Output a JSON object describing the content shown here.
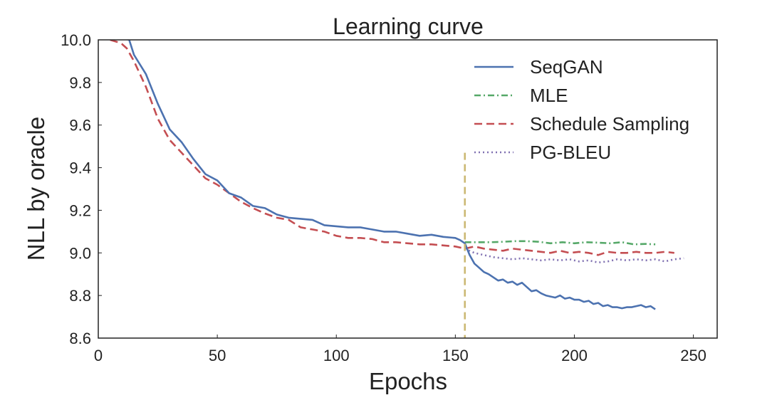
{
  "chart_data": {
    "type": "line",
    "title": "Learning curve",
    "xlabel": "Epochs",
    "ylabel": "NLL by oracle",
    "xlim": [
      0,
      260
    ],
    "ylim": [
      8.6,
      10.0
    ],
    "xticks": [
      0,
      50,
      100,
      150,
      200,
      250
    ],
    "yticks": [
      8.6,
      8.8,
      9.0,
      9.2,
      9.4,
      9.6,
      9.8,
      10.0
    ],
    "xtick_labels": [
      "0",
      "50",
      "100",
      "150",
      "200",
      "250"
    ],
    "ytick_labels": [
      "8.6",
      "8.8",
      "9.0",
      "9.2",
      "9.4",
      "9.6",
      "9.8",
      "10.0"
    ],
    "grid": false,
    "legend_position": "top-right",
    "vline": {
      "x": 154,
      "y_top": 9.47,
      "color": "#ccb974",
      "style": "dashed"
    },
    "series": [
      {
        "name": "SeqGAN",
        "color": "#4c72b0",
        "style": "solid",
        "x": [
          0,
          5,
          10,
          13,
          15,
          20,
          25,
          30,
          35,
          40,
          45,
          50,
          55,
          60,
          65,
          70,
          75,
          80,
          85,
          90,
          95,
          100,
          105,
          110,
          115,
          120,
          125,
          130,
          135,
          140,
          145,
          150,
          152,
          154,
          156,
          158,
          160,
          162,
          164,
          166,
          168,
          170,
          172,
          174,
          176,
          178,
          180,
          182,
          184,
          186,
          188,
          190,
          192,
          194,
          196,
          198,
          200,
          202,
          204,
          206,
          208,
          210,
          212,
          214,
          216,
          218,
          220,
          222,
          224,
          226,
          228,
          230,
          232,
          234
        ],
        "values": [
          10.05,
          10.03,
          10.01,
          10.0,
          9.93,
          9.84,
          9.7,
          9.58,
          9.52,
          9.44,
          9.37,
          9.34,
          9.28,
          9.26,
          9.22,
          9.21,
          9.18,
          9.165,
          9.16,
          9.155,
          9.13,
          9.125,
          9.12,
          9.12,
          9.11,
          9.1,
          9.1,
          9.09,
          9.08,
          9.085,
          9.075,
          9.07,
          9.06,
          9.045,
          8.99,
          8.95,
          8.93,
          8.91,
          8.9,
          8.885,
          8.87,
          8.875,
          8.86,
          8.865,
          8.85,
          8.86,
          8.84,
          8.82,
          8.825,
          8.81,
          8.8,
          8.795,
          8.79,
          8.8,
          8.785,
          8.79,
          8.78,
          8.78,
          8.77,
          8.775,
          8.76,
          8.765,
          8.75,
          8.755,
          8.745,
          8.745,
          8.74,
          8.745,
          8.745,
          8.75,
          8.755,
          8.745,
          8.75,
          8.735
        ]
      },
      {
        "name": "MLE",
        "color": "#55a868",
        "style": "dashdot",
        "x": [
          154,
          160,
          165,
          170,
          175,
          180,
          185,
          190,
          195,
          200,
          205,
          210,
          215,
          220,
          225,
          230,
          234
        ],
        "values": [
          9.05,
          9.05,
          9.05,
          9.052,
          9.055,
          9.055,
          9.052,
          9.045,
          9.05,
          9.045,
          9.05,
          9.048,
          9.045,
          9.05,
          9.04,
          9.042,
          9.04
        ]
      },
      {
        "name": "Schedule Sampling",
        "color": "#c44e52",
        "style": "dashed",
        "x": [
          5,
          8,
          10,
          12,
          15,
          20,
          25,
          30,
          35,
          40,
          45,
          50,
          55,
          60,
          65,
          70,
          75,
          80,
          85,
          90,
          95,
          100,
          105,
          110,
          115,
          120,
          125,
          130,
          135,
          140,
          145,
          150,
          154,
          158,
          162,
          166,
          170,
          174,
          178,
          182,
          186,
          190,
          194,
          198,
          202,
          206,
          210,
          214,
          218,
          222,
          226,
          230,
          234,
          238,
          242
        ],
        "values": [
          10.0,
          9.99,
          9.98,
          9.96,
          9.9,
          9.78,
          9.63,
          9.53,
          9.47,
          9.41,
          9.35,
          9.32,
          9.28,
          9.24,
          9.21,
          9.185,
          9.165,
          9.155,
          9.12,
          9.11,
          9.1,
          9.08,
          9.07,
          9.07,
          9.065,
          9.05,
          9.05,
          9.045,
          9.04,
          9.04,
          9.035,
          9.03,
          9.02,
          9.03,
          9.02,
          9.015,
          9.01,
          9.02,
          9.015,
          9.01,
          9.005,
          9.0,
          9.01,
          9.0,
          9.005,
          9.0,
          8.99,
          9.005,
          9.0,
          9.0,
          9.005,
          9.0,
          9.0,
          9.005,
          9.0
        ]
      },
      {
        "name": "PG-BLEU",
        "color": "#8172b2",
        "style": "dotted",
        "x": [
          154,
          158,
          162,
          166,
          170,
          174,
          178,
          182,
          186,
          190,
          194,
          198,
          202,
          206,
          210,
          214,
          218,
          222,
          226,
          230,
          234,
          238,
          242,
          246
        ],
        "values": [
          9.02,
          9.0,
          8.99,
          8.98,
          8.975,
          8.97,
          8.975,
          8.97,
          8.965,
          8.97,
          8.965,
          8.97,
          8.96,
          8.965,
          8.955,
          8.96,
          8.97,
          8.965,
          8.97,
          8.965,
          8.97,
          8.96,
          8.97,
          8.975
        ]
      }
    ]
  }
}
